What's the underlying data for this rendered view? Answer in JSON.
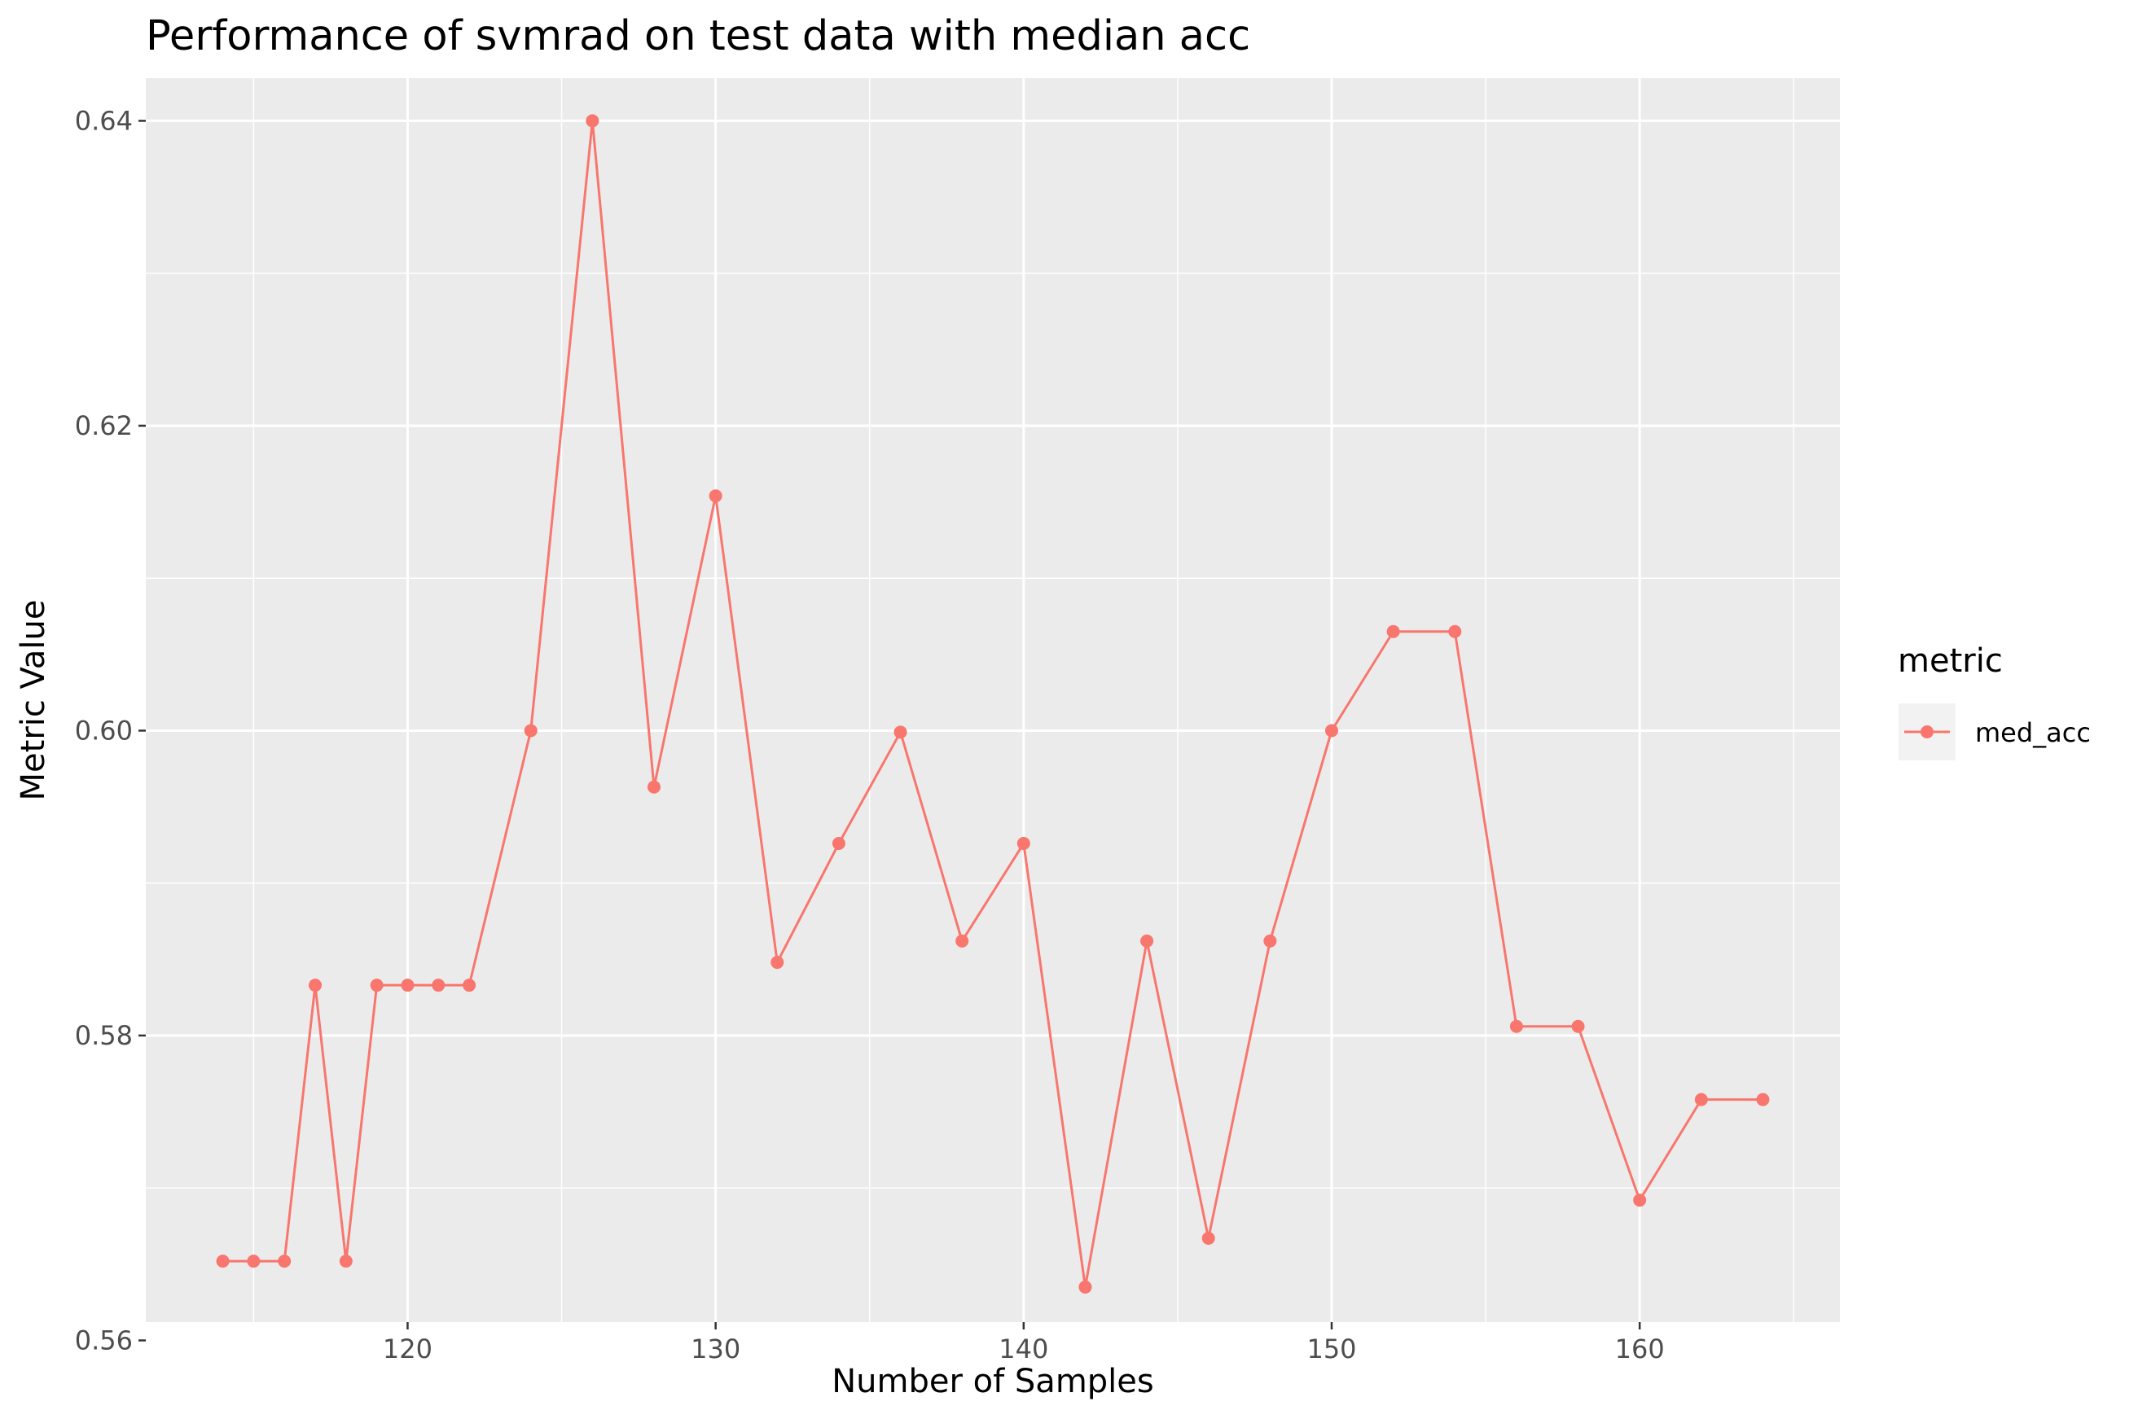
{
  "chart_data": {
    "type": "line",
    "title": "Performance of svmrad on test data with median acc",
    "xlabel": "Number of Samples",
    "ylabel": "Metric Value",
    "xlim": [
      111.5,
      166.5
    ],
    "ylim": [
      0.5612,
      0.6428
    ],
    "xticks": [
      120,
      130,
      140,
      150,
      160
    ],
    "xtick_labels": [
      "120",
      "130",
      "140",
      "150",
      "160"
    ],
    "yticks": [
      0.56,
      0.58,
      0.6,
      0.62,
      0.64
    ],
    "ytick_labels": [
      "0.56",
      "0.58",
      "0.60",
      "0.62",
      "0.64"
    ],
    "grid": true,
    "legend": {
      "title": "metric",
      "position": "right"
    },
    "series": [
      {
        "name": "med_acc",
        "color": "#F8766D",
        "x": [
          114,
          115,
          116,
          117,
          118,
          119,
          120,
          121,
          122,
          124,
          126,
          128,
          130,
          132,
          134,
          136,
          138,
          140,
          142,
          144,
          146,
          148,
          150,
          152,
          154,
          156,
          158,
          160,
          162,
          164
        ],
        "y": [
          0.5652,
          0.5652,
          0.5652,
          0.5833,
          0.5652,
          0.5833,
          0.5833,
          0.5833,
          0.5833,
          0.6,
          0.64,
          0.5963,
          0.6154,
          0.5848,
          0.5926,
          0.5999,
          0.5862,
          0.5926,
          0.5635,
          0.5862,
          0.5667,
          0.5862,
          0.6,
          0.6065,
          0.6065,
          0.5806,
          0.5806,
          0.5692,
          0.5758,
          0.5758
        ]
      }
    ]
  }
}
